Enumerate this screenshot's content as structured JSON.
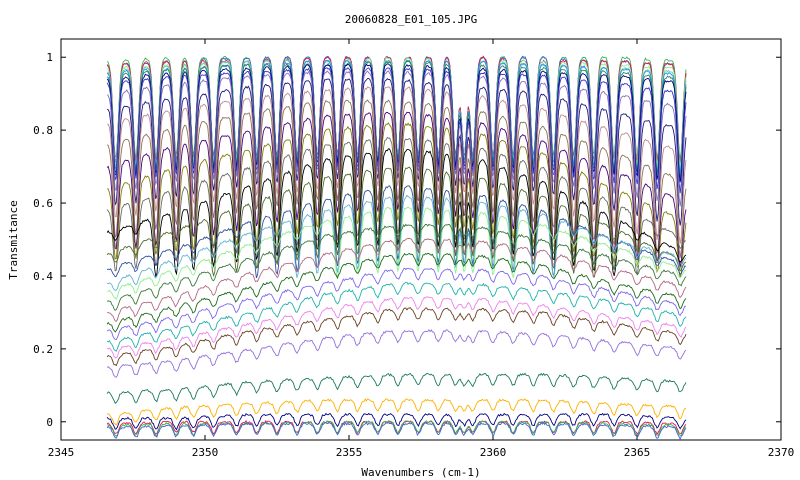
{
  "chart_data": {
    "type": "line",
    "title": "20060828_E01_105.JPG",
    "xlabel": "Wavenumbers (cm-1)",
    "ylabel": "Transmitance",
    "xlim": [
      2345,
      2370
    ],
    "ylim": [
      -0.05,
      1.05
    ],
    "x_range": [
      2346.6,
      2366.7
    ],
    "xticks": [
      2345,
      2350,
      2355,
      2360,
      2365,
      2370
    ],
    "yticks": [
      0,
      0.2,
      0.4,
      0.6,
      0.8,
      1
    ],
    "ytick_labels": [
      "0",
      "0.2",
      "0.4",
      "0.6",
      "0.8",
      "1"
    ],
    "grid": false,
    "legend": "none",
    "absorption_lines": [
      2346.9,
      2347.6,
      2348.3,
      2349.0,
      2349.6,
      2350.3,
      2351.1,
      2351.8,
      2352.5,
      2353.2,
      2353.9,
      2354.6,
      2355.3,
      2356.0,
      2356.7,
      2357.4,
      2358.1,
      2358.7,
      2359.0,
      2359.3,
      2360.0,
      2360.7,
      2361.4,
      2362.1,
      2362.8,
      2363.5,
      2364.2,
      2365.0,
      2365.7,
      2366.5
    ],
    "series": [
      {
        "color": "#3cb44b",
        "values": [
          0.99,
          1.0,
          1.0,
          1.0,
          1.0,
          1.0,
          1.0,
          1.0,
          0.99
        ]
      },
      {
        "color": "#4363d8",
        "values": [
          0.98,
          0.99,
          1.0,
          1.0,
          1.0,
          1.0,
          1.0,
          0.99,
          0.98
        ]
      },
      {
        "color": "#e6194b",
        "values": [
          0.98,
          0.99,
          0.99,
          1.0,
          1.0,
          1.0,
          0.99,
          0.99,
          0.98
        ]
      },
      {
        "color": "#90ee90",
        "values": [
          0.97,
          0.98,
          0.99,
          0.99,
          1.0,
          0.99,
          0.99,
          0.98,
          0.97
        ]
      },
      {
        "color": "#66cdaa",
        "values": [
          0.96,
          0.98,
          0.99,
          0.99,
          0.99,
          0.99,
          0.98,
          0.97,
          0.96
        ]
      },
      {
        "color": "#1e90ff",
        "values": [
          0.96,
          0.97,
          0.98,
          0.99,
          0.99,
          0.99,
          0.98,
          0.97,
          0.95
        ]
      },
      {
        "color": "#2e8b57",
        "values": [
          0.95,
          0.97,
          0.98,
          0.98,
          0.99,
          0.98,
          0.97,
          0.96,
          0.94
        ]
      },
      {
        "color": "#000080",
        "values": [
          0.94,
          0.96,
          0.97,
          0.98,
          0.98,
          0.97,
          0.96,
          0.95,
          0.93
        ]
      },
      {
        "color": "#3333cc",
        "values": [
          0.93,
          0.95,
          0.96,
          0.97,
          0.97,
          0.96,
          0.95,
          0.93,
          0.9
        ]
      },
      {
        "color": "#8b6fb0",
        "values": [
          0.9,
          0.93,
          0.95,
          0.96,
          0.96,
          0.95,
          0.93,
          0.9,
          0.86
        ]
      },
      {
        "color": "#1a1a80",
        "values": [
          0.86,
          0.89,
          0.92,
          0.94,
          0.94,
          0.92,
          0.9,
          0.85,
          0.8
        ]
      },
      {
        "color": "#c08b8b",
        "values": [
          0.82,
          0.86,
          0.89,
          0.91,
          0.92,
          0.9,
          0.86,
          0.8,
          0.74
        ]
      },
      {
        "color": "#8b7355",
        "values": [
          0.76,
          0.81,
          0.85,
          0.88,
          0.88,
          0.86,
          0.81,
          0.74,
          0.66
        ]
      },
      {
        "color": "#4b0082",
        "values": [
          0.7,
          0.76,
          0.8,
          0.84,
          0.85,
          0.83,
          0.77,
          0.69,
          0.6
        ]
      },
      {
        "color": "#808000",
        "values": [
          0.64,
          0.7,
          0.75,
          0.8,
          0.82,
          0.8,
          0.74,
          0.64,
          0.55
        ]
      },
      {
        "color": "#696969",
        "values": [
          0.58,
          0.64,
          0.7,
          0.76,
          0.78,
          0.76,
          0.7,
          0.6,
          0.5
        ]
      },
      {
        "color": "#000000",
        "values": [
          0.52,
          0.58,
          0.65,
          0.72,
          0.75,
          0.73,
          0.66,
          0.56,
          0.46
        ]
      },
      {
        "color": "#556b2f",
        "values": [
          0.46,
          0.53,
          0.6,
          0.67,
          0.7,
          0.68,
          0.62,
          0.53,
          0.44
        ]
      },
      {
        "color": "#2f4f9f",
        "values": [
          0.42,
          0.48,
          0.55,
          0.61,
          0.65,
          0.63,
          0.58,
          0.5,
          0.43
        ]
      },
      {
        "color": "#5fb4d4",
        "values": [
          0.38,
          0.45,
          0.52,
          0.58,
          0.62,
          0.61,
          0.57,
          0.5,
          0.45
        ]
      },
      {
        "color": "#90ee90",
        "values": [
          0.36,
          0.42,
          0.49,
          0.55,
          0.59,
          0.58,
          0.54,
          0.48,
          0.42
        ]
      },
      {
        "color": "#3d7a3d",
        "values": [
          0.33,
          0.39,
          0.45,
          0.51,
          0.54,
          0.54,
          0.5,
          0.45,
          0.4
        ]
      },
      {
        "color": "#b06b80",
        "values": [
          0.3,
          0.35,
          0.41,
          0.46,
          0.5,
          0.5,
          0.47,
          0.42,
          0.37
        ]
      },
      {
        "color": "#1e6b1e",
        "values": [
          0.27,
          0.32,
          0.37,
          0.42,
          0.46,
          0.46,
          0.43,
          0.38,
          0.34
        ]
      },
      {
        "color": "#7b68ee",
        "values": [
          0.25,
          0.29,
          0.34,
          0.38,
          0.42,
          0.42,
          0.4,
          0.36,
          0.32
        ]
      },
      {
        "color": "#20b2aa",
        "values": [
          0.22,
          0.26,
          0.3,
          0.35,
          0.38,
          0.38,
          0.36,
          0.33,
          0.29
        ]
      },
      {
        "color": "#ee82ee",
        "values": [
          0.2,
          0.23,
          0.27,
          0.31,
          0.34,
          0.34,
          0.32,
          0.29,
          0.26
        ]
      },
      {
        "color": "#6b4226",
        "values": [
          0.18,
          0.21,
          0.25,
          0.28,
          0.31,
          0.31,
          0.3,
          0.27,
          0.24
        ]
      },
      {
        "color": "#9370db",
        "values": [
          0.15,
          0.17,
          0.2,
          0.23,
          0.25,
          0.25,
          0.24,
          0.22,
          0.2
        ]
      },
      {
        "color": "#1b7a5a",
        "values": [
          0.08,
          0.09,
          0.11,
          0.12,
          0.13,
          0.13,
          0.13,
          0.12,
          0.11
        ]
      },
      {
        "color": "#ffb000",
        "values": [
          0.02,
          0.04,
          0.05,
          0.06,
          0.06,
          0.06,
          0.06,
          0.05,
          0.04
        ]
      },
      {
        "color": "#000080",
        "values": [
          0.01,
          0.01,
          0.02,
          0.02,
          0.02,
          0.02,
          0.02,
          0.02,
          0.01
        ]
      },
      {
        "color": "#e6194b",
        "values": [
          -0.005,
          0.0,
          0.0,
          0.0,
          0.0,
          0.0,
          0.0,
          0.0,
          -0.005
        ]
      },
      {
        "color": "#3cb44b",
        "values": [
          -0.01,
          -0.005,
          -0.005,
          0.0,
          0.0,
          0.0,
          0.0,
          -0.005,
          -0.01
        ]
      },
      {
        "color": "#4363d8",
        "values": [
          -0.015,
          -0.01,
          -0.005,
          -0.005,
          -0.005,
          -0.005,
          -0.005,
          -0.01,
          -0.015
        ]
      }
    ]
  }
}
